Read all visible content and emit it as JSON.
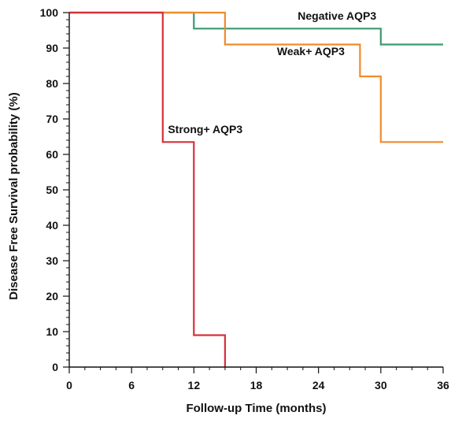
{
  "chart_data": {
    "type": "line",
    "step": true,
    "xlabel": "Follow-up Time (months)",
    "ylabel": "Disease Free Survival probability (%)",
    "xlim": [
      0,
      36
    ],
    "ylim": [
      0,
      100
    ],
    "x_ticks": [
      0,
      6,
      12,
      18,
      24,
      30,
      36
    ],
    "y_ticks": [
      0,
      10,
      20,
      30,
      40,
      50,
      60,
      70,
      80,
      90,
      100
    ],
    "x_minor_step": 1.5,
    "y_minor_step": 2,
    "grid": false,
    "series": [
      {
        "name": "Negative AQP3",
        "color": "#3a9a6e",
        "points": [
          [
            0,
            100
          ],
          [
            12,
            100
          ],
          [
            12,
            95.5
          ],
          [
            30,
            95.5
          ],
          [
            30,
            91
          ],
          [
            36,
            91
          ]
        ],
        "label_anchor": [
          22,
          98
        ]
      },
      {
        "name": "Weak+ AQP3",
        "color": "#f28a2a",
        "points": [
          [
            0,
            100
          ],
          [
            15,
            100
          ],
          [
            15,
            91
          ],
          [
            28,
            91
          ],
          [
            28,
            82
          ],
          [
            30,
            82
          ],
          [
            30,
            63.5
          ],
          [
            36,
            63.5
          ]
        ],
        "label_anchor": [
          20,
          88
        ]
      },
      {
        "name": "Strong+ AQP3",
        "color": "#d6303a",
        "points": [
          [
            0,
            100
          ],
          [
            9,
            100
          ],
          [
            9,
            63.5
          ],
          [
            12,
            63.5
          ],
          [
            12,
            9
          ],
          [
            15,
            9
          ],
          [
            15,
            0
          ]
        ],
        "label_anchor": [
          9.5,
          66
        ]
      }
    ]
  }
}
